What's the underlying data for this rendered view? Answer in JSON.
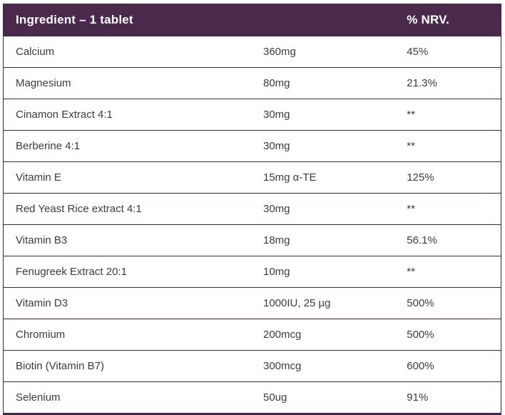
{
  "header": {
    "ingredient_label": "Ingredient – 1 tablet",
    "amount_label": "",
    "nrv_label": "% NRV."
  },
  "rows": [
    {
      "ingredient": "Calcium",
      "amount": "360mg",
      "nrv": "45%"
    },
    {
      "ingredient": "Magnesium",
      "amount": "80mg",
      "nrv": "21.3%"
    },
    {
      "ingredient": "Cinamon Extract 4:1",
      "amount": "30mg",
      "nrv": "**"
    },
    {
      "ingredient": "Berberine 4:1",
      "amount": "30mg",
      "nrv": "**"
    },
    {
      "ingredient": "Vitamin E",
      "amount": "15mg α-TE",
      "nrv": "125%"
    },
    {
      "ingredient": "Red Yeast Rice extract 4:1",
      "amount": "30mg",
      "nrv": "**"
    },
    {
      "ingredient": "Vitamin B3",
      "amount": "18mg",
      "nrv": "56.1%"
    },
    {
      "ingredient": "Fenugreek Extract 20:1",
      "amount": "10mg",
      "nrv": "**"
    },
    {
      "ingredient": "Vitamin D3",
      "amount": "1000IU, 25 µg",
      "nrv": "500%"
    },
    {
      "ingredient": "Chromium",
      "amount": "200mcg",
      "nrv": "500%"
    },
    {
      "ingredient": "Biotin (Vitamin B7)",
      "amount": "300mcg",
      "nrv": "600%"
    },
    {
      "ingredient": "Selenium",
      "amount": "50ug",
      "nrv": "91%"
    }
  ],
  "colors": {
    "header_bg": "#4A2A4C",
    "border": "#432347",
    "header_text": "#FFFFFF",
    "body_text": "#3B3B3B"
  }
}
